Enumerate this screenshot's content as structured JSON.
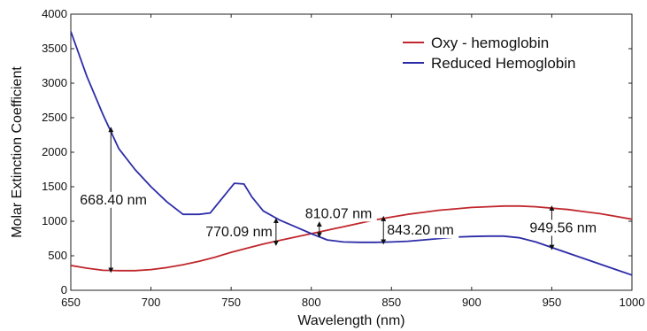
{
  "chart_data": {
    "type": "line",
    "title": "",
    "xlabel": "Wavelength (nm)",
    "ylabel": "Molar Extinction Coefficient",
    "xlim": [
      650,
      1000
    ],
    "ylim": [
      0,
      4000
    ],
    "xticks": [
      "650",
      "700",
      "750",
      "800",
      "850",
      "900",
      "950",
      "1000"
    ],
    "yticks": [
      "0",
      "500",
      "1000",
      "1500",
      "2000",
      "2500",
      "3000",
      "3500",
      "4000"
    ],
    "legend_position": "top-right",
    "grid": false,
    "series": [
      {
        "name": "Oxy - hemoglobin",
        "color": "#c0272d",
        "x": [
          650,
          660,
          670,
          680,
          690,
          700,
          710,
          720,
          730,
          740,
          750,
          760,
          770,
          780,
          790,
          800,
          810,
          820,
          830,
          840,
          850,
          860,
          870,
          880,
          890,
          900,
          910,
          920,
          930,
          940,
          950,
          960,
          970,
          980,
          990,
          1000
        ],
        "y": [
          360,
          320,
          290,
          285,
          285,
          300,
          330,
          370,
          420,
          480,
          550,
          610,
          670,
          720,
          770,
          820,
          870,
          920,
          970,
          1020,
          1060,
          1100,
          1130,
          1160,
          1180,
          1200,
          1210,
          1220,
          1220,
          1210,
          1190,
          1170,
          1140,
          1110,
          1070,
          1030
        ]
      },
      {
        "name": "Reduced Hemoglobin",
        "color": "#2c2ca8",
        "x": [
          650,
          660,
          670,
          680,
          690,
          700,
          710,
          720,
          730,
          737,
          745,
          752,
          758,
          763,
          770,
          780,
          790,
          800,
          810,
          820,
          830,
          840,
          850,
          860,
          870,
          880,
          890,
          900,
          910,
          920,
          930,
          940,
          950,
          960,
          970,
          980,
          990,
          1000
        ],
        "y": [
          3750,
          3100,
          2550,
          2050,
          1750,
          1500,
          1280,
          1100,
          1100,
          1120,
          1350,
          1550,
          1540,
          1350,
          1150,
          1020,
          920,
          820,
          730,
          700,
          695,
          695,
          700,
          710,
          730,
          750,
          770,
          780,
          785,
          785,
          760,
          700,
          620,
          540,
          460,
          380,
          300,
          220
        ]
      }
    ],
    "annotations": [
      {
        "label": "668.40 nm",
        "x": 675,
        "y_from": 290,
        "y_to": 2330
      },
      {
        "label": "770.09 nm",
        "x": 778,
        "y_from": 680,
        "y_to": 1010
      },
      {
        "label": "810.07 nm",
        "x": 805,
        "y_from": 800,
        "y_to": 960
      },
      {
        "label": "843.20 nm",
        "x": 845,
        "y_from": 700,
        "y_to": 1040
      },
      {
        "label": "949.56 nm",
        "x": 950,
        "y_from": 620,
        "y_to": 1190
      }
    ]
  }
}
